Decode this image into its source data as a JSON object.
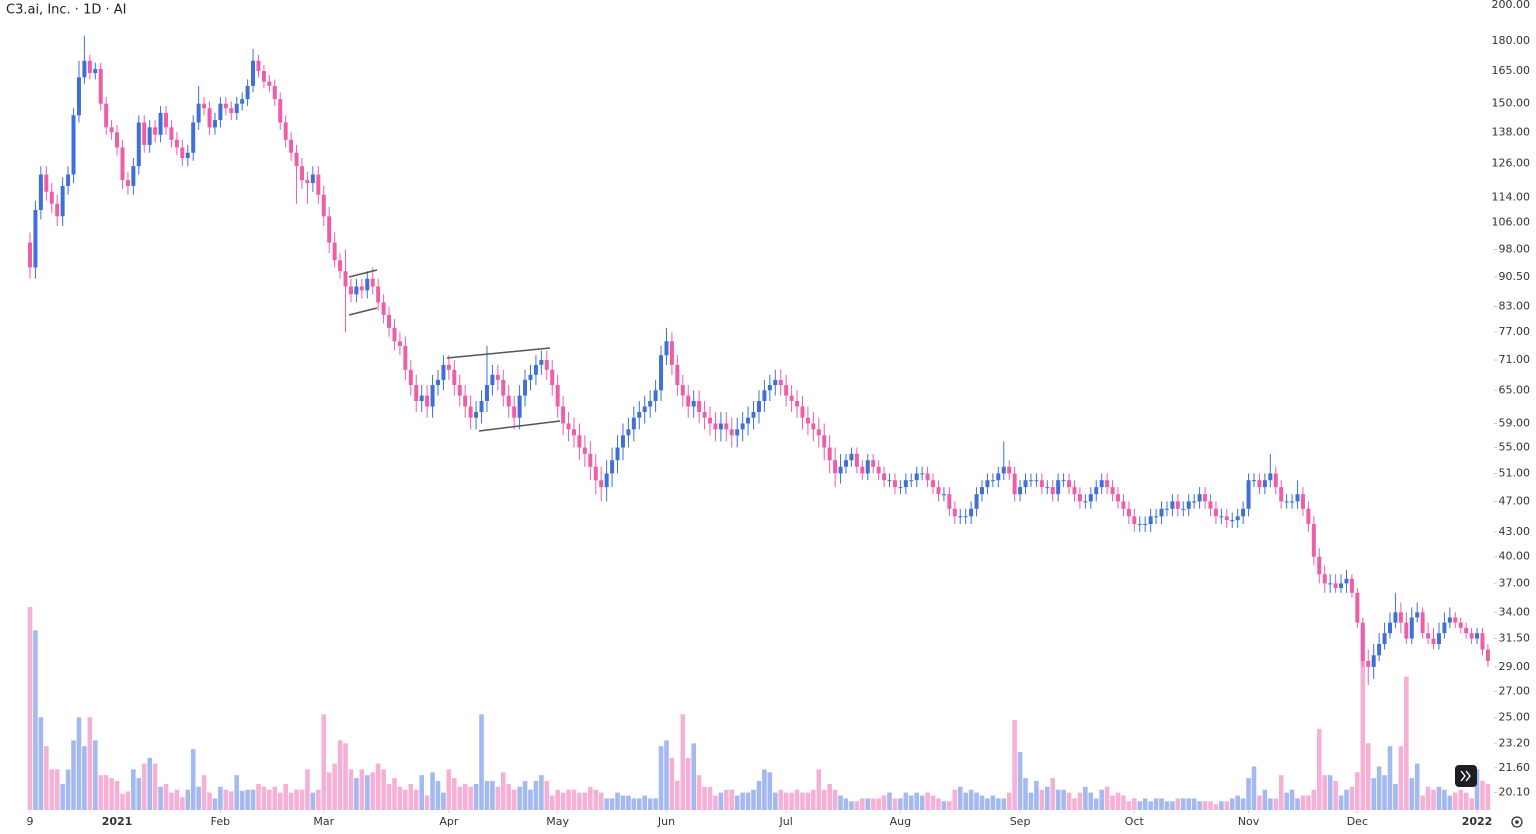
{
  "chart_data": {
    "type": "candlestick",
    "title": "C3.ai, Inc. · 1D · AI",
    "log_scale": true,
    "up_color": "#3f6fd9",
    "down_color": "#ee5ea8",
    "volume_up_color": "#a3b9ef",
    "volume_down_color": "#f6b0d6",
    "ylim": [
      19.1,
      203
    ],
    "yticks": [
      {
        "value": 200,
        "label": "200.00"
      },
      {
        "value": 180,
        "label": "180.00"
      },
      {
        "value": 165,
        "label": "165.00"
      },
      {
        "value": 150,
        "label": "150.00"
      },
      {
        "value": 138,
        "label": "138.00"
      },
      {
        "value": 126,
        "label": "126.00"
      },
      {
        "value": 114,
        "label": "114.00"
      },
      {
        "value": 106,
        "label": "106.00"
      },
      {
        "value": 98,
        "label": "98.00"
      },
      {
        "value": 90.5,
        "label": "90.50"
      },
      {
        "value": 83,
        "label": "83.00"
      },
      {
        "value": 77,
        "label": "77.00"
      },
      {
        "value": 71,
        "label": "71.00"
      },
      {
        "value": 65,
        "label": "65.00"
      },
      {
        "value": 59,
        "label": "59.00"
      },
      {
        "value": 55,
        "label": "55.00"
      },
      {
        "value": 51,
        "label": "51.00"
      },
      {
        "value": 47,
        "label": "47.00"
      },
      {
        "value": 43,
        "label": "43.00"
      },
      {
        "value": 40,
        "label": "40.00"
      },
      {
        "value": 37,
        "label": "37.00"
      },
      {
        "value": 34,
        "label": "34.00"
      },
      {
        "value": 31.5,
        "label": "31.50"
      },
      {
        "value": 29,
        "label": "29.00"
      },
      {
        "value": 27,
        "label": "27.00"
      },
      {
        "value": 25,
        "label": "25.00"
      },
      {
        "value": 23.2,
        "label": "23.20"
      },
      {
        "value": 21.6,
        "label": "21.60"
      },
      {
        "value": 20.1,
        "label": "20.10"
      }
    ],
    "xticks": [
      {
        "value": 0,
        "label": "9"
      },
      {
        "value": 16,
        "label": "2021"
      },
      {
        "value": 35,
        "label": "Feb"
      },
      {
        "value": 54,
        "label": "Mar"
      },
      {
        "value": 77,
        "label": "Apr"
      },
      {
        "value": 97,
        "label": "May"
      },
      {
        "value": 117,
        "label": "Jun"
      },
      {
        "value": 139,
        "label": "Jul"
      },
      {
        "value": 160,
        "label": "Aug"
      },
      {
        "value": 182,
        "label": "Sep"
      },
      {
        "value": 203,
        "label": "Oct"
      },
      {
        "value": 224,
        "label": "Nov"
      },
      {
        "value": 244,
        "label": "Dec"
      },
      {
        "value": 266,
        "label": "2022"
      }
    ],
    "close": [
      93,
      110,
      122,
      116,
      112,
      108,
      118,
      122,
      145,
      162,
      170,
      164,
      166,
      150,
      140,
      138,
      132,
      120,
      118,
      125,
      142,
      133,
      140,
      137,
      146,
      140,
      135,
      132,
      128,
      130,
      142,
      150,
      148,
      140,
      143,
      150,
      148,
      146,
      150,
      152,
      158,
      170,
      165,
      160,
      158,
      152,
      142,
      135,
      130,
      125,
      120,
      119,
      122,
      115,
      108,
      100,
      95,
      92,
      88,
      86,
      88,
      87,
      90,
      88,
      84,
      81,
      78,
      75,
      74,
      69,
      66,
      63,
      64,
      62,
      66,
      67,
      70,
      69,
      66,
      64,
      62,
      60,
      61,
      63,
      66,
      68,
      67,
      64,
      62,
      60,
      64,
      67,
      68,
      70,
      71,
      69,
      66,
      62,
      59,
      58,
      57,
      55,
      54,
      52,
      50,
      49,
      51,
      53,
      55,
      57,
      58,
      60,
      61,
      62,
      63,
      65,
      72,
      75,
      70,
      66,
      64,
      62,
      63,
      61,
      60,
      59,
      58,
      59,
      58,
      57,
      58,
      59,
      60,
      61,
      63,
      65,
      66,
      67,
      66,
      64,
      63,
      62,
      60,
      59,
      58,
      57,
      55,
      53,
      51,
      52,
      53,
      54,
      52,
      51,
      53,
      52,
      51,
      50,
      50,
      49,
      49,
      50,
      50,
      51,
      51,
      50,
      49,
      48,
      48,
      46,
      45,
      45,
      45,
      46,
      48,
      49,
      50,
      50,
      51,
      52,
      51,
      48,
      49,
      50,
      50,
      50,
      49,
      49,
      48,
      50,
      50,
      49,
      48,
      47,
      47,
      48,
      49,
      50,
      49,
      48,
      47,
      46,
      45,
      44,
      44,
      44,
      45,
      45,
      46,
      46,
      47,
      46,
      46,
      47,
      47,
      48,
      47,
      46,
      45,
      45,
      44.5,
      44.5,
      45,
      46,
      50,
      50,
      49,
      50,
      51,
      49,
      47,
      47,
      47,
      48,
      46,
      44,
      40,
      38,
      37,
      37,
      36.5,
      37,
      37.5,
      36,
      33,
      29.5,
      29,
      30,
      31,
      32,
      33,
      34,
      33,
      31.5,
      33.5,
      34,
      32,
      31.5,
      31,
      32,
      33,
      33.5,
      33,
      32.5,
      32,
      31.5,
      32,
      30.5,
      29.5
    ],
    "open": [
      100,
      93,
      110,
      122,
      116,
      112,
      108,
      118,
      122,
      145,
      162,
      170,
      164,
      166,
      150,
      140,
      138,
      132,
      120,
      118,
      125,
      142,
      133,
      140,
      137,
      146,
      140,
      135,
      132,
      128,
      130,
      142,
      150,
      148,
      140,
      143,
      150,
      148,
      146,
      150,
      152,
      158,
      170,
      165,
      160,
      158,
      152,
      142,
      135,
      130,
      125,
      120,
      119,
      122,
      115,
      108,
      100,
      95,
      92,
      88,
      86,
      88,
      87,
      90,
      88,
      84,
      81,
      78,
      75,
      74,
      69,
      66,
      63,
      64,
      62,
      66,
      67,
      70,
      69,
      66,
      64,
      62,
      60,
      61,
      63,
      66,
      68,
      67,
      64,
      62,
      60,
      64,
      67,
      68,
      70,
      71,
      69,
      66,
      62,
      59,
      58,
      57,
      55,
      54,
      52,
      50,
      49,
      51,
      53,
      55,
      57,
      58,
      60,
      61,
      62,
      63,
      65,
      72,
      75,
      70,
      66,
      64,
      62,
      63,
      61,
      60,
      59,
      58,
      59,
      58,
      57,
      58,
      59,
      60,
      61,
      63,
      65,
      66,
      67,
      66,
      64,
      63,
      62,
      60,
      59,
      58,
      57,
      55,
      53,
      51,
      52,
      53,
      54,
      52,
      51,
      53,
      52,
      51,
      50,
      50,
      49,
      49,
      50,
      50,
      51,
      51,
      50,
      49,
      48,
      48,
      46,
      45,
      45,
      45,
      46,
      48,
      49,
      50,
      50,
      51,
      52,
      51,
      48,
      49,
      50,
      50,
      50,
      49,
      49,
      48,
      50,
      50,
      49,
      48,
      47,
      47,
      48,
      49,
      50,
      49,
      48,
      47,
      46,
      45,
      44,
      44,
      44,
      45,
      45,
      46,
      46,
      47,
      46,
      46,
      47,
      47,
      48,
      47,
      46,
      45,
      45,
      44.5,
      44.5,
      45,
      46,
      50,
      50,
      49,
      50,
      51,
      49,
      47,
      47,
      47,
      48,
      46,
      44,
      40,
      38,
      37,
      37,
      36.5,
      37,
      37.5,
      36,
      33,
      29.5,
      29,
      30,
      31,
      32,
      33,
      34,
      33,
      31.5,
      33.5,
      34,
      32,
      31.5,
      31,
      32,
      33,
      33.5,
      33,
      32.5,
      32,
      31.5,
      32,
      30.5
    ],
    "high": [
      103,
      113,
      125,
      125,
      119,
      115,
      121,
      125,
      148,
      170,
      183,
      173,
      169,
      169,
      153,
      143,
      141,
      135,
      123,
      128,
      145,
      145,
      143,
      143,
      149,
      149,
      143,
      138,
      135,
      133,
      145,
      158,
      153,
      151,
      146,
      153,
      153,
      151,
      153,
      155,
      161,
      176,
      173,
      168,
      163,
      161,
      155,
      145,
      138,
      133,
      128,
      123,
      125,
      125,
      118,
      111,
      103,
      97,
      98,
      90,
      90,
      90,
      92,
      93,
      90,
      86,
      83,
      80,
      77,
      76,
      71,
      68,
      66,
      66,
      68,
      69,
      72,
      72,
      71,
      68,
      66,
      64,
      63,
      65,
      74,
      70,
      70,
      69,
      66,
      64,
      66,
      69,
      70,
      72,
      73,
      73,
      71,
      68,
      64,
      61,
      60,
      59,
      57,
      56,
      54,
      52,
      53,
      55,
      57,
      59,
      60,
      62,
      63,
      64,
      65,
      67,
      74,
      78,
      77,
      72,
      68,
      66,
      65,
      65,
      63,
      62,
      61,
      61,
      61,
      60,
      60,
      61,
      62,
      63,
      65,
      67,
      68,
      69,
      69,
      68,
      66,
      65,
      64,
      62,
      61,
      60,
      59,
      57,
      55,
      54,
      54,
      55,
      55,
      53,
      54,
      54,
      53,
      52,
      51,
      51,
      50,
      51,
      51,
      52,
      52,
      52,
      51,
      50,
      49,
      49,
      47,
      46,
      46,
      47,
      49,
      50,
      51,
      51,
      52,
      56,
      53,
      52,
      50,
      51,
      51,
      51,
      51,
      50,
      50,
      51,
      51,
      51,
      50,
      49,
      48,
      49,
      50,
      51,
      51,
      50,
      49,
      48,
      47,
      46,
      45,
      45,
      46,
      46,
      47,
      47,
      48,
      48,
      47,
      48,
      48,
      49,
      49,
      48,
      47,
      46,
      46,
      45.5,
      46,
      47,
      51,
      51,
      51,
      51,
      54,
      52,
      50,
      48,
      48,
      50,
      49,
      47,
      45,
      41,
      39,
      38,
      38,
      38,
      38.5,
      38,
      36.5,
      33.5,
      30.5,
      31,
      32,
      33,
      34,
      36,
      35,
      34,
      34.5,
      35,
      34.5,
      33,
      32.5,
      33,
      34,
      34.5,
      34,
      33.5,
      33,
      32.5,
      32.5,
      32.5,
      31
    ],
    "low": [
      90,
      90,
      107,
      113,
      109,
      105,
      105,
      115,
      119,
      142,
      159,
      161,
      161,
      147,
      137,
      135,
      129,
      117,
      115,
      115,
      122,
      130,
      130,
      134,
      134,
      137,
      132,
      129,
      125,
      125,
      127,
      139,
      145,
      137,
      137,
      140,
      145,
      143,
      143,
      147,
      149,
      155,
      162,
      157,
      155,
      149,
      139,
      132,
      127,
      112,
      117,
      112,
      116,
      112,
      105,
      97,
      93,
      90,
      77,
      84,
      84,
      85,
      85,
      86,
      82,
      79,
      76,
      73,
      72,
      67,
      64,
      61,
      61,
      60,
      60,
      64,
      65,
      67,
      64,
      62,
      60,
      58,
      58,
      59,
      61,
      64,
      65,
      62,
      60,
      58,
      58,
      62,
      65,
      66,
      68,
      67,
      64,
      60,
      57,
      56,
      55,
      53,
      52,
      50,
      48,
      47,
      47,
      49,
      51,
      53,
      55,
      56,
      58,
      59,
      60,
      61,
      63,
      70,
      68,
      64,
      62,
      60,
      60,
      59,
      58,
      57,
      56,
      56,
      56,
      55,
      55,
      56,
      57,
      58,
      59,
      61,
      63,
      64,
      64,
      62,
      61,
      60,
      58,
      57,
      56,
      55,
      53,
      51,
      49,
      49.5,
      51,
      52,
      51,
      50,
      50,
      51,
      50,
      49,
      49,
      48,
      48,
      48,
      49,
      49,
      50,
      49,
      48,
      47,
      47,
      45,
      44,
      44,
      44,
      44,
      45,
      47,
      48,
      49,
      49,
      50,
      50,
      47,
      47,
      48,
      49,
      49,
      48,
      48,
      47,
      47,
      49,
      48,
      47,
      46,
      46,
      46,
      47,
      48,
      48,
      47,
      46,
      45,
      44,
      43,
      43,
      43,
      43,
      44,
      44,
      45,
      45,
      45,
      45,
      45,
      46,
      46,
      46,
      45,
      44,
      44,
      43.5,
      43.5,
      43.5,
      44,
      45,
      49,
      48,
      48,
      49,
      48,
      46,
      46,
      46,
      46,
      45,
      43,
      39,
      37,
      36,
      36,
      36,
      36,
      36,
      35.5,
      32.5,
      29,
      27.5,
      28,
      29.5,
      30.5,
      31.5,
      32.5,
      32,
      31,
      31,
      33,
      31.5,
      31,
      30.5,
      30.5,
      31.5,
      32.5,
      32.5,
      32,
      31.5,
      31,
      31,
      30,
      29
    ],
    "volume": [
      35,
      31,
      16,
      11,
      7,
      7,
      4.5,
      7,
      12,
      16,
      11,
      16,
      12,
      6,
      6,
      5.5,
      5,
      2.8,
      3.2,
      7,
      5.5,
      8,
      9,
      8,
      4,
      4.5,
      3,
      3.5,
      2.2,
      3.5,
      10.5,
      4,
      6,
      3,
      2,
      4,
      3.5,
      3.2,
      6,
      3.3,
      3.5,
      3.5,
      4.5,
      4,
      3.5,
      4,
      3,
      4.5,
      3,
      3.5,
      3.5,
      7,
      3,
      3.5,
      16.5,
      6.5,
      8,
      12,
      11.5,
      7,
      5.5,
      7,
      6,
      6.5,
      8,
      7,
      4.5,
      5.5,
      4,
      3.5,
      4.5,
      3.5,
      6,
      2.5,
      6.5,
      5,
      3,
      7,
      5.5,
      4,
      4.5,
      4,
      4.5,
      16.5,
      5,
      5,
      4,
      6.5,
      4.5,
      3.5,
      4,
      5,
      3.5,
      5,
      6,
      5,
      2.5,
      3.5,
      3,
      3.5,
      3.5,
      3,
      3,
      4,
      3.5,
      3,
      2,
      2,
      3,
      2.5,
      2.5,
      2,
      2,
      2.5,
      2,
      2,
      11,
      12,
      9,
      5,
      16.5,
      9,
      11.5,
      6,
      4,
      4,
      2.5,
      3,
      3.5,
      3.5,
      2.5,
      3,
      3,
      3.5,
      5,
      7,
      6.5,
      3,
      3.5,
      3,
      3,
      3.5,
      3,
      3,
      3.5,
      7,
      3.5,
      4.5,
      3.5,
      2.5,
      2,
      1.5,
      1.5,
      2,
      2,
      2,
      2,
      2.5,
      3,
      2,
      2,
      3,
      2.5,
      3,
      2.5,
      3,
      2.5,
      2,
      1.5,
      1.5,
      3.5,
      4,
      3,
      3.5,
      3,
      2.5,
      2,
      2.5,
      2,
      2,
      3,
      15.5,
      10,
      5.5,
      3,
      5,
      3.5,
      4,
      5.5,
      3.5,
      3.5,
      3,
      2,
      3,
      4,
      3,
      2,
      3.5,
      4,
      2.5,
      3,
      2.5,
      1.5,
      2,
      1.5,
      2,
      1.5,
      2,
      2,
      1.5,
      1.5,
      2,
      2,
      2,
      2,
      1.5,
      1.5,
      1.5,
      1,
      1.5,
      1.5,
      2,
      2.5,
      2,
      5.5,
      7.5,
      2.5,
      3.5,
      2,
      2,
      6,
      3,
      3.5,
      2,
      2.5,
      2.5,
      3.5,
      14,
      6,
      6,
      5,
      2.5,
      3.5,
      4,
      6.5,
      31.5,
      11.5,
      5.5,
      7.5,
      6,
      11,
      4.5,
      11,
      23,
      5.5,
      8,
      2.5,
      4,
      3.5,
      4,
      3.5,
      2.5,
      3,
      3.5,
      3,
      2,
      7,
      5,
      4.5
    ]
  }
}
